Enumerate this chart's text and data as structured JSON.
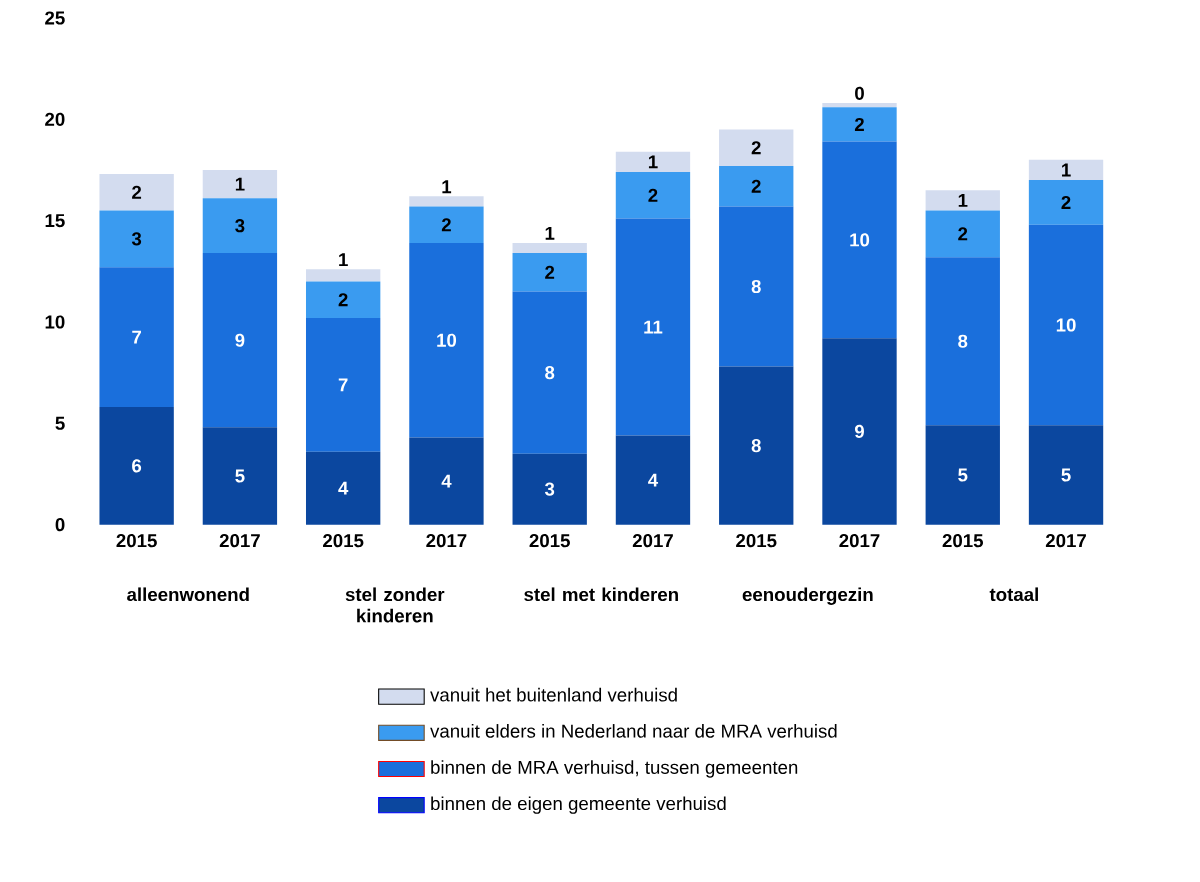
{
  "chart_data": {
    "type": "bar",
    "stacked": true,
    "categories": [
      "2015",
      "2017",
      "2015",
      "2017",
      "2015",
      "2017",
      "2015",
      "2017",
      "2015",
      "2017"
    ],
    "annotations": [
      "alleenwonend",
      "stel zonder kinderen",
      "stel met kinderen",
      "eenoudergezin",
      "totaal"
    ],
    "ylim": [
      0,
      25
    ],
    "yticks": [
      0,
      5,
      10,
      15,
      20,
      25
    ],
    "grid": false,
    "legend": "bottom",
    "series": [
      {
        "name": "binnen de eigen gemeente verhuisd",
        "color": "#0b479f",
        "values": [
          5.8,
          4.8,
          3.6,
          4.3,
          3.5,
          4.4,
          7.8,
          9.2,
          4.9,
          4.9
        ],
        "value_labels": [
          "6",
          "5",
          "4",
          "4",
          "3",
          "4",
          "8",
          "9",
          "5",
          "5"
        ]
      },
      {
        "name": "binnen de MRA verhuisd, tussen gemeenten",
        "color": "#1a6fdc",
        "values": [
          6.9,
          8.6,
          6.6,
          9.6,
          8.0,
          10.7,
          7.9,
          9.7,
          8.3,
          9.9
        ],
        "value_labels": [
          "7",
          "9",
          "7",
          "10",
          "8",
          "11",
          "8",
          "10",
          "8",
          "10"
        ]
      },
      {
        "name": "vanuit elders in Nederland naar de MRA verhuisd",
        "color": "#3a9bf0",
        "values": [
          2.8,
          2.7,
          1.8,
          1.8,
          1.9,
          2.3,
          2.0,
          1.7,
          2.3,
          2.2
        ],
        "value_labels": [
          "3",
          "3",
          "2",
          "2",
          "2",
          "2",
          "2",
          "2",
          "2",
          "2"
        ]
      },
      {
        "name": "vanuit het buitenland verhuisd",
        "color": "#d3dcef",
        "values": [
          1.8,
          1.4,
          0.6,
          0.5,
          0.5,
          1.0,
          1.8,
          0.2,
          1.0,
          1.0
        ],
        "value_labels": [
          "2",
          "1",
          "1",
          "1",
          "1",
          "1",
          "2",
          "0",
          "1",
          "1"
        ]
      }
    ]
  }
}
